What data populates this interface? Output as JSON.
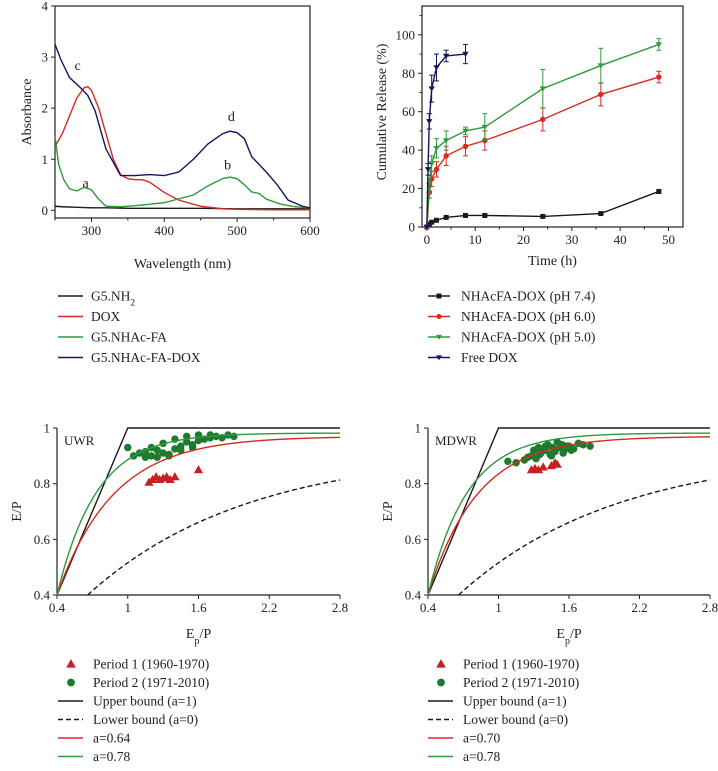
{
  "chart_data": [
    {
      "type": "line",
      "id": "absorbance",
      "xlabel": "Wavelength (nm)",
      "ylabel": "Absorbance",
      "xlim": [
        250,
        600
      ],
      "ylim": [
        -0.15,
        4
      ],
      "xticks": [
        300,
        400,
        500,
        600
      ],
      "yticks": [
        0,
        1,
        2,
        3,
        4
      ],
      "series": [
        {
          "name": "G5.NH",
          "sub": "2",
          "color": "#1a1a1a",
          "label": "a",
          "label_at": [
            292,
            0.45
          ],
          "x": [
            250,
            260,
            280,
            300,
            320,
            350,
            400,
            450,
            500,
            550,
            600
          ],
          "y": [
            0.08,
            0.07,
            0.06,
            0.05,
            0.05,
            0.04,
            0.04,
            0.04,
            0.03,
            0.03,
            0.03
          ]
        },
        {
          "name": "DOX",
          "color": "#d62a20",
          "label": "c",
          "label_at": [
            281,
            2.75
          ],
          "x": [
            250,
            260,
            270,
            280,
            290,
            295,
            300,
            310,
            320,
            330,
            340,
            350,
            360,
            370,
            380,
            390,
            400,
            420,
            450,
            480,
            500,
            550,
            600
          ],
          "y": [
            1.25,
            1.5,
            1.85,
            2.2,
            2.4,
            2.42,
            2.35,
            2.0,
            1.5,
            1.0,
            0.7,
            0.62,
            0.6,
            0.6,
            0.55,
            0.45,
            0.35,
            0.2,
            0.08,
            0.03,
            0.02,
            0.01,
            0.01
          ]
        },
        {
          "name": "G5.NHAc-FA",
          "color": "#2e9a3a",
          "label": "b",
          "label_at": [
            487,
            0.8
          ],
          "x": [
            250,
            255,
            262,
            270,
            280,
            290,
            300,
            310,
            320,
            340,
            360,
            400,
            440,
            460,
            480,
            490,
            500,
            510,
            520,
            530,
            540,
            560,
            580,
            600
          ],
          "y": [
            1.45,
            0.9,
            0.6,
            0.42,
            0.38,
            0.45,
            0.4,
            0.22,
            0.08,
            0.07,
            0.09,
            0.15,
            0.3,
            0.48,
            0.62,
            0.65,
            0.62,
            0.5,
            0.36,
            0.33,
            0.22,
            0.12,
            0.07,
            0.05
          ]
        },
        {
          "name": "G5.NHAc-FA-DOX",
          "color": "#14165a",
          "label": "d",
          "label_at": [
            492,
            1.75
          ],
          "x": [
            250,
            258,
            270,
            285,
            295,
            305,
            320,
            340,
            360,
            380,
            400,
            420,
            440,
            460,
            480,
            490,
            500,
            510,
            520,
            530,
            540,
            555,
            570,
            590,
            600
          ],
          "y": [
            3.25,
            2.95,
            2.6,
            2.4,
            2.25,
            1.95,
            1.2,
            0.68,
            0.68,
            0.7,
            0.68,
            0.75,
            1.0,
            1.3,
            1.5,
            1.55,
            1.52,
            1.4,
            1.05,
            0.9,
            0.75,
            0.5,
            0.2,
            0.08,
            0.05
          ]
        }
      ]
    },
    {
      "type": "line",
      "id": "release",
      "xlabel": "Time (h)",
      "ylabel": "Cumulative Release (%)",
      "xlim": [
        -1,
        53
      ],
      "ylim": [
        0,
        115
      ],
      "xticks": [
        0,
        10,
        20,
        30,
        40,
        50
      ],
      "yticks": [
        0,
        20,
        40,
        60,
        80,
        100
      ],
      "series": [
        {
          "name": "NHAcFA-DOX (pH 7.4)",
          "color": "#1a1a1a",
          "marker": "square",
          "x": [
            0,
            0.5,
            1,
            2,
            4,
            8,
            12,
            24,
            36,
            48
          ],
          "y": [
            0,
            1.5,
            2.5,
            3.5,
            5,
            6,
            6,
            5.5,
            7,
            18.5
          ],
          "err": [
            0,
            0.5,
            0.5,
            0.5,
            0.5,
            0.5,
            0.5,
            0.5,
            0.5,
            1
          ]
        },
        {
          "name": "NHAcFA-DOX (pH 6.0)",
          "color": "#d62a20",
          "marker": "circle",
          "x": [
            0,
            0.5,
            1,
            2,
            4,
            8,
            12,
            24,
            36,
            48
          ],
          "y": [
            0,
            18,
            25,
            30,
            37,
            42,
            45,
            56,
            69,
            78
          ],
          "err": [
            0,
            3,
            4,
            4,
            5,
            5,
            5,
            6,
            6,
            3
          ]
        },
        {
          "name": "NHAcFA-DOX (pH 5.0)",
          "color": "#2e9a3a",
          "marker": "triangle-down",
          "x": [
            0,
            0.5,
            1,
            2,
            4,
            8,
            12,
            24,
            36,
            48
          ],
          "y": [
            0,
            22,
            33,
            41,
            45,
            50,
            52,
            72,
            84,
            95
          ],
          "err": [
            0,
            3,
            4,
            5,
            5,
            2,
            7,
            10,
            9,
            3
          ]
        },
        {
          "name": "Free DOX",
          "color": "#14165a",
          "marker": "triangle-down",
          "x": [
            0,
            0.25,
            0.5,
            1,
            2,
            4,
            8
          ],
          "y": [
            0,
            30,
            55,
            72,
            83,
            89,
            90
          ],
          "err": [
            0,
            3,
            4,
            7,
            7,
            3,
            5
          ]
        }
      ]
    },
    {
      "type": "scatter",
      "id": "uwr",
      "title": "UWR",
      "xlabel": "E",
      "xlabel_sub": "p",
      "xlabel_tail": "/P",
      "ylabel": "E/P",
      "xlim": [
        0.4,
        2.8
      ],
      "ylim": [
        0.4,
        1.0
      ],
      "xticks": [
        0.4,
        1,
        1.6,
        2.2,
        2.8
      ],
      "yticks": [
        0.4,
        0.6,
        0.8,
        1
      ],
      "series": [
        {
          "name": "Period 1 (1960-1970)",
          "color": "#c82020",
          "marker": "triangle",
          "x": [
            1.18,
            1.21,
            1.24,
            1.27,
            1.3,
            1.33,
            1.36,
            1.4,
            1.6
          ],
          "y": [
            0.805,
            0.815,
            0.825,
            0.815,
            0.82,
            0.825,
            0.815,
            0.825,
            0.85
          ]
        },
        {
          "name": "Period 2 (1971-2010)",
          "color": "#1e7a2e",
          "marker": "circle",
          "x": [
            1.0,
            1.05,
            1.1,
            1.15,
            1.2,
            1.25,
            1.3,
            1.35,
            1.4,
            1.45,
            1.5,
            1.55,
            1.6,
            1.65,
            1.7,
            1.75,
            1.8,
            1.85,
            1.9,
            1.15,
            1.2,
            1.3,
            1.4,
            1.5,
            1.6,
            1.7,
            1.25,
            1.35,
            1.45,
            1.55
          ],
          "y": [
            0.93,
            0.9,
            0.91,
            0.895,
            0.9,
            0.92,
            0.91,
            0.905,
            0.925,
            0.935,
            0.95,
            0.94,
            0.955,
            0.96,
            0.975,
            0.97,
            0.965,
            0.975,
            0.97,
            0.915,
            0.93,
            0.945,
            0.96,
            0.97,
            0.975,
            0.965,
            0.895,
            0.9,
            0.92,
            0.93
          ]
        },
        {
          "name": "Upper bound (a=1)",
          "color": "#1a1a1a",
          "style": "solid",
          "curve": "upper"
        },
        {
          "name": "Lower bound (a=0)",
          "color": "#1a1a1a",
          "style": "dashed",
          "curve": "lower"
        },
        {
          "name": "a=0.64",
          "color": "#d62a20",
          "style": "solid",
          "curve": "a",
          "a": 0.64
        },
        {
          "name": "a=0.78",
          "color": "#2e9a3a",
          "style": "solid",
          "curve": "a",
          "a": 0.78
        }
      ]
    },
    {
      "type": "scatter",
      "id": "mdwr",
      "title": "MDWR",
      "xlabel": "E",
      "xlabel_sub": "p",
      "xlabel_tail": "/P",
      "ylabel": "E/P",
      "xlim": [
        0.4,
        2.8
      ],
      "ylim": [
        0.4,
        1.0
      ],
      "xticks": [
        0.4,
        1,
        1.6,
        2.2,
        2.8
      ],
      "yticks": [
        0.4,
        0.6,
        0.8,
        1
      ],
      "series": [
        {
          "name": "Period 1 (1960-1970)",
          "color": "#c82020",
          "marker": "triangle",
          "x": [
            1.28,
            1.31,
            1.34,
            1.38,
            1.45,
            1.48,
            1.5
          ],
          "y": [
            0.85,
            0.855,
            0.85,
            0.86,
            0.865,
            0.875,
            0.87
          ]
        },
        {
          "name": "Period 2 (1971-2010)",
          "color": "#1e7a2e",
          "marker": "circle",
          "x": [
            1.08,
            1.15,
            1.22,
            1.28,
            1.32,
            1.36,
            1.4,
            1.44,
            1.48,
            1.52,
            1.56,
            1.6,
            1.64,
            1.68,
            1.72,
            1.78,
            1.3,
            1.34,
            1.38,
            1.42,
            1.46,
            1.5,
            1.54,
            1.58,
            1.62,
            1.35,
            1.45,
            1.55,
            1.25,
            1.4
          ],
          "y": [
            0.88,
            0.875,
            0.885,
            0.9,
            0.89,
            0.91,
            0.92,
            0.905,
            0.915,
            0.93,
            0.92,
            0.935,
            0.925,
            0.945,
            0.94,
            0.935,
            0.92,
            0.93,
            0.925,
            0.94,
            0.93,
            0.95,
            0.94,
            0.935,
            0.92,
            0.905,
            0.9,
            0.91,
            0.895,
            0.935
          ]
        },
        {
          "name": "Upper bound (a=1)",
          "color": "#1a1a1a",
          "style": "solid",
          "curve": "upper"
        },
        {
          "name": "Lower bound (a=0)",
          "color": "#1a1a1a",
          "style": "dashed",
          "curve": "lower"
        },
        {
          "name": "a=0.70",
          "color": "#d62a20",
          "style": "solid",
          "curve": "a",
          "a": 0.7
        },
        {
          "name": "a=0.78",
          "color": "#2e9a3a",
          "style": "solid",
          "curve": "a",
          "a": 0.78
        }
      ]
    }
  ]
}
